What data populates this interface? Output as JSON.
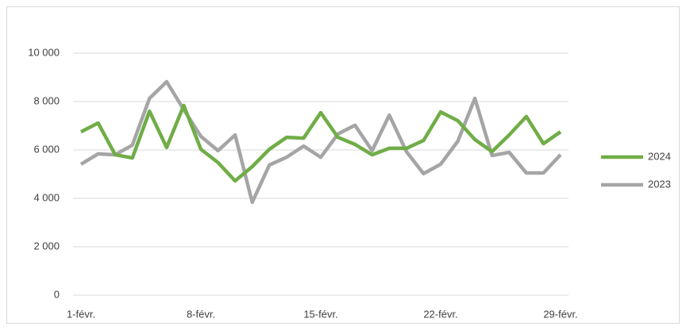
{
  "chart_data": {
    "type": "line",
    "categories": [
      "1-févr.",
      null,
      null,
      null,
      null,
      null,
      null,
      "8-févr.",
      null,
      null,
      null,
      null,
      null,
      null,
      "15-févr.",
      null,
      null,
      null,
      null,
      null,
      null,
      "22-févr.",
      null,
      null,
      null,
      null,
      null,
      null,
      "29-févr."
    ],
    "series": [
      {
        "name": "2024",
        "color": "#70ad47",
        "values": [
          6750,
          7110,
          5800,
          5670,
          7600,
          6100,
          7840,
          6030,
          5480,
          4720,
          5310,
          6030,
          6520,
          6490,
          7540,
          6520,
          6230,
          5800,
          6070,
          6070,
          6390,
          7570,
          7210,
          6430,
          5930,
          6620,
          7380,
          6260,
          6750
        ]
      },
      {
        "name": "2023",
        "color": "#a5a5a5",
        "values": [
          5410,
          5840,
          5800,
          6200,
          8130,
          8820,
          7670,
          6560,
          5970,
          6620,
          3840,
          5380,
          5700,
          6160,
          5700,
          6660,
          7020,
          5970,
          7440,
          5930,
          5020,
          5410,
          6360,
          8130,
          5770,
          5900,
          5050,
          5050,
          5800
        ]
      }
    ],
    "ylim": [
      0,
      11000
    ],
    "yticks": [
      0,
      {
        "value": 2000,
        "label": "2 000"
      },
      {
        "value": 4000,
        "label": "4 000"
      },
      {
        "value": 6000,
        "label": "6 000"
      },
      {
        "value": 8000,
        "label": "8 000"
      },
      {
        "value": 10000,
        "label": "10 000"
      }
    ],
    "grid": true,
    "legend": "right"
  }
}
